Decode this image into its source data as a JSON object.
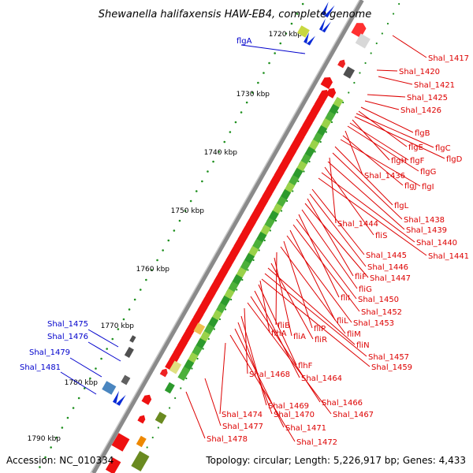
{
  "title": "Shewanella halifaxensis HAW-EB4, complete genome",
  "accession": "Accession: NC_010334",
  "summary": "Topology: circular; Length: 5,226,917 bp; Genes: 4,433",
  "scale_labels": [
    "1720 kbp",
    "1730 kbp",
    "1740 kbp",
    "1750 kbp",
    "1760 kbp",
    "1770 kbp",
    "1780 kbp",
    "1790 kbp"
  ],
  "colors": {
    "forward_label": "#0000cc",
    "reverse_label": "#dd0000",
    "gene_red": "#ee0000",
    "gene_green": "#2d9a2d",
    "gene_lightgreen": "#9ad24a",
    "gene_blue": "#0a2ad6",
    "backbone": "#8a8a8a"
  },
  "forward_labels": [
    "flgA",
    "Shal_1475",
    "Shal_1476",
    "Shal_1479",
    "Shal_1481"
  ],
  "reverse_labels": [
    "Shal_1417",
    "Shal_1420",
    "Shal_1421",
    "Shal_1425",
    "Shal_1426",
    "flgB",
    "flgE",
    "flgC",
    "flgD",
    "flgH",
    "flgF",
    "flgG",
    "Shal_1436",
    "flgJ",
    "flgI",
    "flgL",
    "Shal_1438",
    "Shal_1444",
    "Shal_1439",
    "fliS",
    "Shal_1440",
    "Shal_1441",
    "Shal_1445",
    "Shal_1446",
    "fliF",
    "Shal_1447",
    "fliG",
    "fliI",
    "Shal_1450",
    "Shal_1452",
    "fliL",
    "Shal_1453",
    "fliB",
    "fliP",
    "fliM",
    "fliA",
    "fliR",
    "fliN",
    "Shal_1457",
    "Shal_1459",
    "flhF",
    "Shal_1468",
    "Shal_1464",
    "flhA",
    "Shal_1466",
    "Shal_1469",
    "Shal_1467",
    "Shal_1474",
    "Shal_1470",
    "Shal_1477",
    "Shal_1471",
    "Shal_1478",
    "Shal_1472"
  ]
}
